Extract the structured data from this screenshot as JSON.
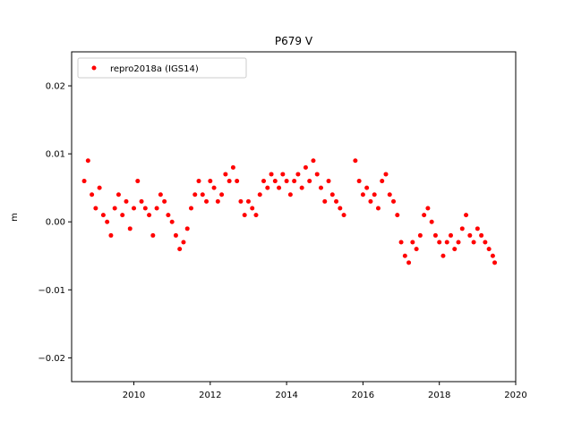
{
  "chart_data": {
    "type": "scatter",
    "title": "P679 V",
    "xlabel": "",
    "ylabel": "m",
    "xlim": [
      2008.37,
      2020.0
    ],
    "ylim": [
      -0.0235,
      0.025
    ],
    "xticks": [
      2010,
      2012,
      2014,
      2016,
      2018,
      2020
    ],
    "xtick_labels": [
      "2010",
      "2012",
      "2014",
      "2016",
      "2018",
      "2020"
    ],
    "yticks": [
      -0.02,
      -0.01,
      0.0,
      0.01,
      0.02
    ],
    "ytick_labels": [
      "−0.02",
      "−0.01",
      "0.00",
      "0.01",
      "0.02"
    ],
    "grid": false,
    "legend_position": "top-left",
    "series": [
      {
        "name": "repro2018a (IGS14)",
        "color": "#ff0000",
        "marker": "circle",
        "x": [
          2008.7,
          2008.8,
          2008.9,
          2009.0,
          2009.1,
          2009.2,
          2009.3,
          2009.4,
          2009.5,
          2009.6,
          2009.7,
          2009.8,
          2009.9,
          2010.0,
          2010.1,
          2010.2,
          2010.3,
          2010.4,
          2010.5,
          2010.6,
          2010.7,
          2010.8,
          2010.9,
          2011.0,
          2011.1,
          2011.2,
          2011.3,
          2011.4,
          2011.5,
          2011.6,
          2011.7,
          2011.8,
          2011.9,
          2012.0,
          2012.1,
          2012.2,
          2012.3,
          2012.4,
          2012.5,
          2012.6,
          2012.7,
          2012.8,
          2012.9,
          2013.0,
          2013.1,
          2013.2,
          2013.3,
          2013.4,
          2013.5,
          2013.6,
          2013.7,
          2013.8,
          2013.9,
          2014.0,
          2014.1,
          2014.2,
          2014.3,
          2014.4,
          2014.5,
          2014.6,
          2014.7,
          2014.8,
          2014.9,
          2015.0,
          2015.1,
          2015.2,
          2015.3,
          2015.4,
          2015.5,
          2015.8,
          2015.9,
          2016.0,
          2016.1,
          2016.2,
          2016.3,
          2016.4,
          2016.5,
          2016.6,
          2016.7,
          2016.8,
          2016.9,
          2017.0,
          2017.1,
          2017.2,
          2017.3,
          2017.4,
          2017.5,
          2017.6,
          2017.7,
          2017.8,
          2017.9,
          2018.0,
          2018.1,
          2018.2,
          2018.3,
          2018.4,
          2018.5,
          2018.6,
          2018.7,
          2018.8,
          2018.9,
          2019.0,
          2019.1,
          2019.2,
          2019.3,
          2019.4,
          2019.45
        ],
        "y": [
          0.006,
          0.009,
          0.004,
          0.002,
          0.005,
          0.001,
          0.0,
          -0.002,
          0.002,
          0.004,
          0.001,
          0.003,
          -0.001,
          0.002,
          0.006,
          0.003,
          0.002,
          0.001,
          -0.002,
          0.002,
          0.004,
          0.003,
          0.001,
          0.0,
          -0.002,
          -0.004,
          -0.003,
          -0.001,
          0.002,
          0.004,
          0.006,
          0.004,
          0.003,
          0.006,
          0.005,
          0.003,
          0.004,
          0.007,
          0.006,
          0.008,
          0.006,
          0.003,
          0.001,
          0.003,
          0.002,
          0.001,
          0.004,
          0.006,
          0.005,
          0.007,
          0.006,
          0.005,
          0.007,
          0.006,
          0.004,
          0.006,
          0.007,
          0.005,
          0.008,
          0.006,
          0.009,
          0.007,
          0.005,
          0.003,
          0.006,
          0.004,
          0.003,
          0.002,
          0.001,
          0.009,
          0.006,
          0.004,
          0.005,
          0.003,
          0.004,
          0.002,
          0.006,
          0.007,
          0.004,
          0.003,
          0.001,
          -0.003,
          -0.005,
          -0.006,
          -0.003,
          -0.004,
          -0.002,
          0.001,
          0.002,
          0.0,
          -0.002,
          -0.003,
          -0.005,
          -0.003,
          -0.002,
          -0.004,
          -0.003,
          -0.001,
          0.001,
          -0.002,
          -0.003,
          -0.001,
          -0.002,
          -0.003,
          -0.004,
          -0.005,
          -0.006
        ]
      }
    ]
  }
}
